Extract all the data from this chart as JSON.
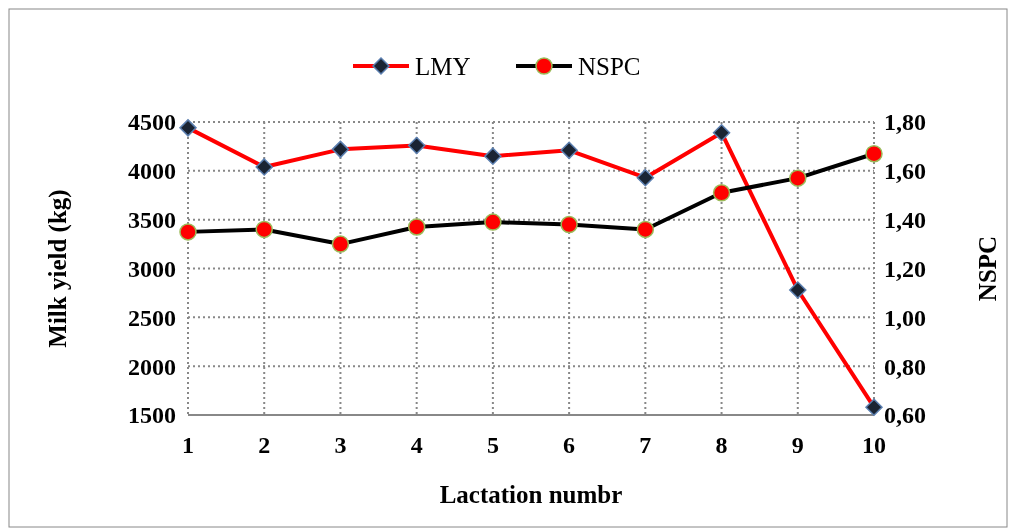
{
  "chart_data": {
    "type": "line",
    "xlabel": "Lactation numbr",
    "ylabel": "Milk yield (kg)",
    "y2label": "NSPC",
    "categories": [
      "1",
      "2",
      "3",
      "4",
      "5",
      "6",
      "7",
      "8",
      "9",
      "10"
    ],
    "series": [
      {
        "name": "LMY",
        "color": "#ff0000",
        "marker": "diamond",
        "values": [
          4440,
          4040,
          4220,
          4260,
          4150,
          4210,
          3930,
          4390,
          2780,
          1580
        ]
      },
      {
        "name": "NSPC",
        "color": "#000000",
        "marker": "circle",
        "axis": "y2",
        "values": [
          1.35,
          1.36,
          1.3,
          1.37,
          1.39,
          1.38,
          1.36,
          1.51,
          1.57,
          1.67
        ]
      }
    ],
    "ylim": [
      1500,
      4500
    ],
    "yticks": [
      1500,
      2000,
      2500,
      3000,
      3500,
      4000,
      4500
    ],
    "y2lim": [
      0.6,
      1.8
    ],
    "y2ticks": [
      {
        "value": 0.6,
        "label": "0,60"
      },
      {
        "value": 0.8,
        "label": "0,80"
      },
      {
        "value": 1.0,
        "label": "1,00"
      },
      {
        "value": 1.2,
        "label": "1,20"
      },
      {
        "value": 1.4,
        "label": "1,40"
      },
      {
        "value": 1.6,
        "label": "1,60"
      },
      {
        "value": 1.8,
        "label": "1,80"
      }
    ],
    "grid": true,
    "legend": "top",
    "line_style": "solid"
  }
}
